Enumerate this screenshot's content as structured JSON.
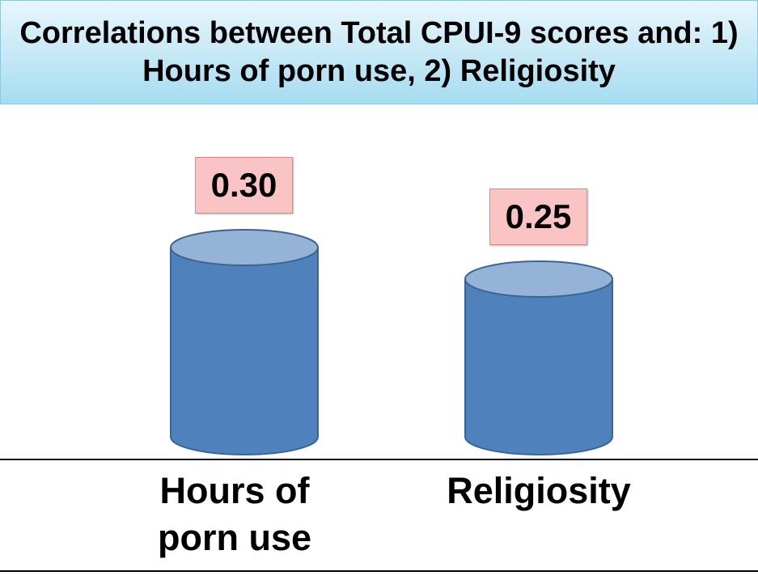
{
  "chart_data": {
    "type": "bar",
    "title": "Correlations between Total CPUI-9 scores and: 1) Hours of porn use, 2) Religiosity",
    "categories": [
      "Hours of porn use",
      "Religiosity"
    ],
    "values": [
      0.3,
      0.25
    ],
    "value_labels": [
      "0.30",
      "0.25"
    ],
    "color": "#4f81bd"
  }
}
